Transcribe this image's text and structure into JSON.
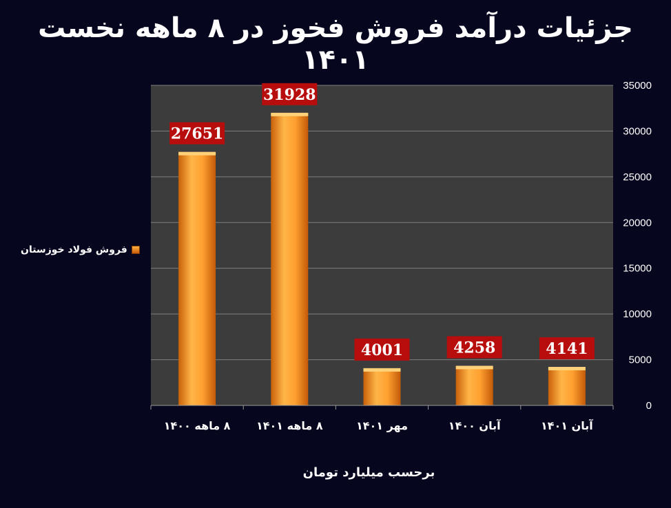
{
  "chart_data": {
    "type": "bar",
    "title": "جزئیات درآمد فروش فخوز در ۸ ماهه نخست ۱۴۰۱",
    "categories": [
      "۸ ماهه ۱۴۰۰",
      "۸ ماهه ۱۴۰۱",
      "مهر ۱۴۰۱",
      "آبان ۱۴۰۰",
      "آبان ۱۴۰۱"
    ],
    "series": [
      {
        "name": "فروش فولاد خوزستان",
        "values": [
          27651,
          31928,
          4001,
          4258,
          4141
        ]
      }
    ],
    "xlabel": "برحسب میلیارد تومان",
    "ylabel": "",
    "ylim": [
      0,
      35000
    ],
    "yticks": [
      0,
      5000,
      10000,
      15000,
      20000,
      25000,
      30000,
      35000
    ],
    "y_axis_side": "right",
    "grid": true,
    "legend_position": "left",
    "colors": {
      "bar_light": "#ffb547",
      "bar_dark": "#d9680c",
      "label_bg": "#b80d0d",
      "plot_bg": "#3c3c3c",
      "background": "#07061f"
    }
  }
}
